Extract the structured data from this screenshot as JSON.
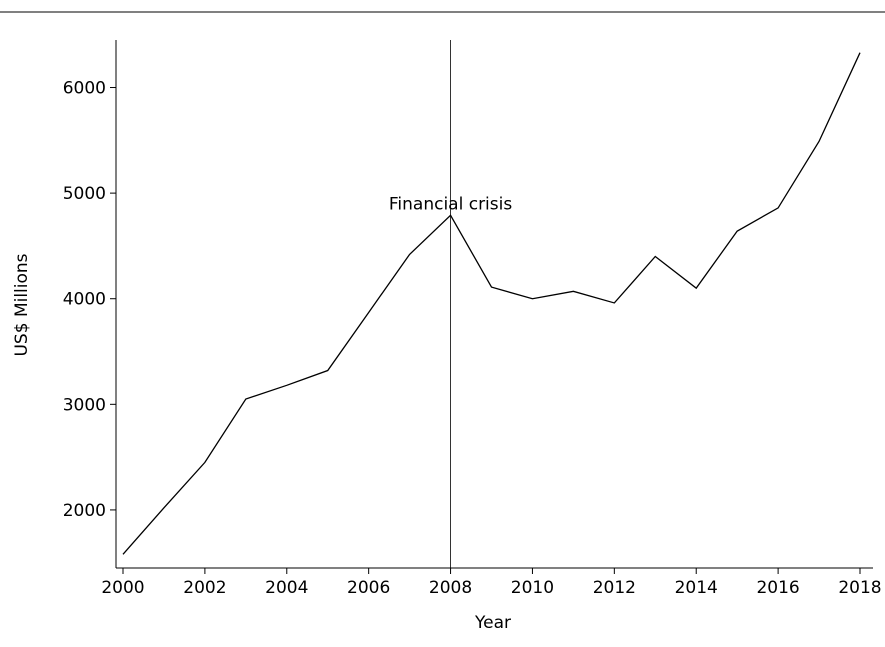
{
  "chart_data": {
    "type": "line",
    "title": "",
    "xlabel": "Year",
    "ylabel": "US$ Millions",
    "xlim": [
      2000,
      2018
    ],
    "ylim": [
      1450,
      6450
    ],
    "grid": false,
    "x_ticks": [
      2000,
      2002,
      2004,
      2006,
      2008,
      2010,
      2012,
      2014,
      2016,
      2018
    ],
    "y_ticks": [
      2000,
      3000,
      4000,
      5000,
      6000
    ],
    "x_tick_labels": [
      "2000",
      "2002",
      "2004",
      "2006",
      "2008",
      "2010",
      "2012",
      "2014",
      "2016",
      "2018"
    ],
    "y_tick_labels": [
      "2000",
      "3000",
      "4000",
      "5000",
      "6000"
    ],
    "series": [
      {
        "x": [
          2000,
          2001,
          2002,
          2003,
          2004,
          2005,
          2006,
          2007,
          2008,
          2009,
          2010,
          2011,
          2012,
          2013,
          2014,
          2015,
          2016,
          2017,
          2018
        ],
        "values": [
          1580,
          2020,
          2450,
          3050,
          3180,
          3320,
          3870,
          4420,
          4790,
          4110,
          4000,
          4070,
          3960,
          4400,
          4100,
          4640,
          4860,
          5490,
          6330
        ]
      }
    ],
    "annotations": [
      {
        "text": "Financial crisis",
        "x": 2008,
        "type": "vertical-line"
      }
    ]
  }
}
